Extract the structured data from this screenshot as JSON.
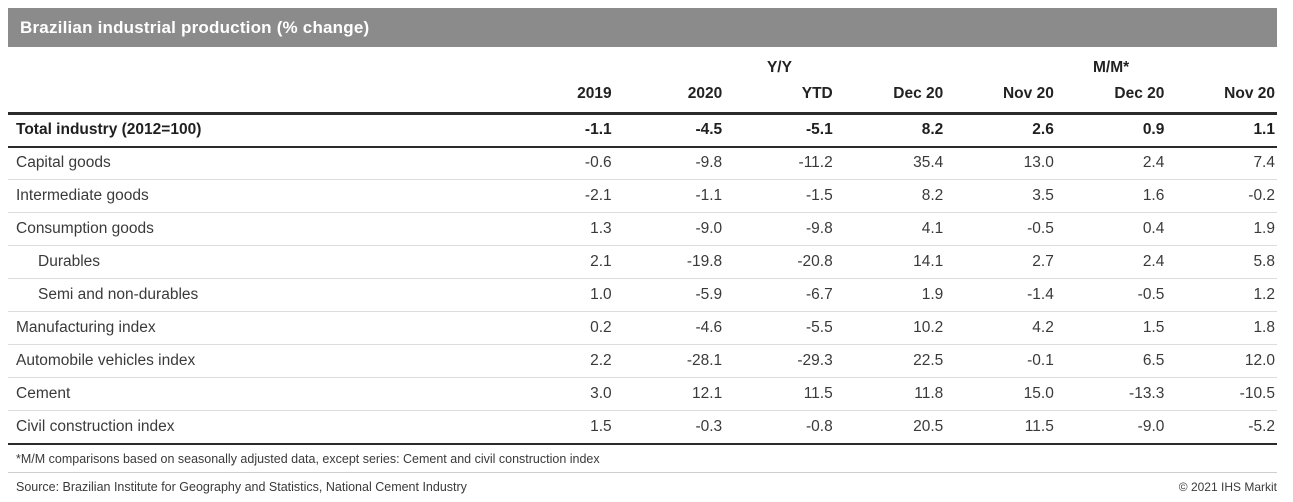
{
  "title": "Brazilian industrial production (% change)",
  "colors": {
    "header_bg": "#8b8b8b",
    "header_text": "#ffffff",
    "rule_dark": "#2b2b2b",
    "rule_light": "#dcdcdc",
    "text": "#3a3a3a"
  },
  "chart_data": {
    "type": "table",
    "title": "Brazilian industrial production (% change)",
    "group_headers": [
      {
        "label": "Y/Y"
      },
      {
        "label": "M/M*"
      }
    ],
    "columns": [
      "2019",
      "2020",
      "YTD",
      "Dec 20",
      "Nov 20",
      "Dec 20",
      "Nov 20"
    ],
    "rows": [
      {
        "label": "Total industry (2012=100)",
        "bold": true,
        "indent": 0,
        "values": [
          "-1.1",
          "-4.5",
          "-5.1",
          "8.2",
          "2.6",
          "0.9",
          "1.1"
        ]
      },
      {
        "label": "Capital goods",
        "bold": false,
        "indent": 0,
        "values": [
          "-0.6",
          "-9.8",
          "-11.2",
          "35.4",
          "13.0",
          "2.4",
          "7.4"
        ]
      },
      {
        "label": "Intermediate goods",
        "bold": false,
        "indent": 0,
        "values": [
          "-2.1",
          "-1.1",
          "-1.5",
          "8.2",
          "3.5",
          "1.6",
          "-0.2"
        ]
      },
      {
        "label": "Consumption goods",
        "bold": false,
        "indent": 0,
        "values": [
          "1.3",
          "-9.0",
          "-9.8",
          "4.1",
          "-0.5",
          "0.4",
          "1.9"
        ]
      },
      {
        "label": "Durables",
        "bold": false,
        "indent": 1,
        "values": [
          "2.1",
          "-19.8",
          "-20.8",
          "14.1",
          "2.7",
          "2.4",
          "5.8"
        ]
      },
      {
        "label": "Semi and non-durables",
        "bold": false,
        "indent": 1,
        "values": [
          "1.0",
          "-5.9",
          "-6.7",
          "1.9",
          "-1.4",
          "-0.5",
          "1.2"
        ]
      },
      {
        "label": "Manufacturing index",
        "bold": false,
        "indent": 0,
        "values": [
          "0.2",
          "-4.6",
          "-5.5",
          "10.2",
          "4.2",
          "1.5",
          "1.8"
        ]
      },
      {
        "label": "Automobile vehicles index",
        "bold": false,
        "indent": 0,
        "values": [
          "2.2",
          "-28.1",
          "-29.3",
          "22.5",
          "-0.1",
          "6.5",
          "12.0"
        ]
      },
      {
        "label": "Cement",
        "bold": false,
        "indent": 0,
        "values": [
          "3.0",
          "12.1",
          "11.5",
          "11.8",
          "15.0",
          "-13.3",
          "-10.5"
        ]
      },
      {
        "label": "Civil construction index",
        "bold": false,
        "indent": 0,
        "values": [
          "1.5",
          "-0.3",
          "-0.8",
          "20.5",
          "11.5",
          "-9.0",
          "-5.2"
        ]
      }
    ],
    "footnote": "*M/M comparisons based on seasonally adjusted data, except series: Cement and civil construction index",
    "source": "Source: Brazilian Institute for Geography and Statistics, National Cement Industry",
    "copyright": "© 2021 IHS Markit"
  }
}
